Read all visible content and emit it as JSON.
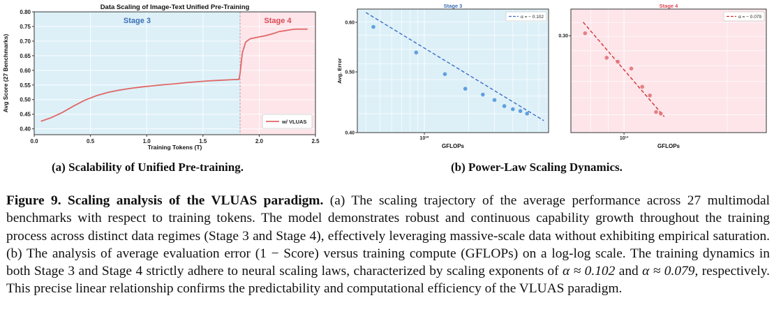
{
  "panel_a": {
    "subcaption": "(a) Scalability of Unified Pre-training."
  },
  "panel_b": {
    "subcaption": "(b) Power-Law Scaling Dynamics."
  },
  "caption": {
    "label": "Figure 9.",
    "title": "Scaling analysis of the VLUAS paradigm.",
    "body_1": " (a) The scaling trajectory of the average performance across 27 multimodal benchmarks with respect to training tokens. The model demonstrates robust and continuous capability growth throughout the training process across distinct data regimes (Stage 3 and Stage 4), effectively leveraging massive-scale data without exhibiting empirical saturation. (b) The analysis of average evaluation error (1 − Score) versus training compute (GFLOPs) on a log-log scale. The training dynamics in both Stage 3 and Stage 4 strictly adhere to neural scaling laws, characterized by scaling exponents of ",
    "alpha1": "α ≈ 0.102",
    "body_2": " and ",
    "alpha2": "α ≈ 0.079",
    "body_3": ", respectively. This precise linear relationship confirms the predictability and computational efficiency of the VLUAS paradigm."
  },
  "chart_data": [
    {
      "type": "line",
      "title": "Data Scaling of Image-Text Unified Pre-Training",
      "xlabel": "Training Tokens (T)",
      "ylabel": "Avg Score (27 Benchmarks)",
      "xlim": [
        0,
        2.5
      ],
      "ylim": [
        0.38,
        0.8
      ],
      "xticks": [
        0,
        0.5,
        1.0,
        1.5,
        2.0,
        2.5
      ],
      "xtick_labels": [
        "0.0",
        "0.5",
        "1.0",
        "1.5",
        "2.0",
        "2.5"
      ],
      "yticks": [
        0.4,
        0.45,
        0.5,
        0.55,
        0.6,
        0.65,
        0.7,
        0.75,
        0.8
      ],
      "ytick_labels": [
        "0.40",
        "0.45",
        "0.50",
        "0.55",
        "0.60",
        "0.65",
        "0.70",
        "0.75",
        "0.80"
      ],
      "grid": true,
      "legend": "bottom-right",
      "regions": [
        {
          "label": "Stage 3",
          "x_start": 0,
          "x_end": 1.83,
          "color": "#ddf0f8",
          "label_color": "#3b6fb6"
        },
        {
          "label": "Stage 4",
          "x_start": 1.83,
          "x_end": 2.5,
          "color": "#fde5ea",
          "label_color": "#d94b55"
        }
      ],
      "series": [
        {
          "name": "w/ VLUAS",
          "color": "#e06666",
          "x": [
            0.06,
            0.15,
            0.25,
            0.35,
            0.45,
            0.55,
            0.65,
            0.75,
            0.85,
            0.95,
            1.05,
            1.15,
            1.25,
            1.35,
            1.45,
            1.55,
            1.65,
            1.75,
            1.82,
            1.83,
            1.85,
            1.88,
            1.92,
            1.98,
            2.05,
            2.12,
            2.18,
            2.22,
            2.25,
            2.3,
            2.33,
            2.38,
            2.43
          ],
          "y": [
            0.426,
            0.438,
            0.456,
            0.478,
            0.498,
            0.513,
            0.524,
            0.532,
            0.538,
            0.543,
            0.547,
            0.551,
            0.554,
            0.558,
            0.561,
            0.564,
            0.566,
            0.568,
            0.569,
            0.59,
            0.66,
            0.697,
            0.708,
            0.713,
            0.718,
            0.725,
            0.733,
            0.735,
            0.737,
            0.74,
            0.741,
            0.741,
            0.741
          ]
        }
      ]
    },
    {
      "type": "scatter",
      "title": "Stage 3",
      "xlabel": "GFLOPs",
      "ylabel": "Avg. Error",
      "log_x": true,
      "log_y": true,
      "xlim": [
        3500000000.0,
        70000000000.0
      ],
      "ylim": [
        0.4,
        0.63
      ],
      "xticks": [
        10000000000.0
      ],
      "xtick_labels": [
        "10¹⁰"
      ],
      "yticks": [
        0.4,
        0.5,
        0.6
      ],
      "ytick_labels": [
        "0.40",
        "0.50",
        "0.60"
      ],
      "grid": true,
      "legend": "top-right",
      "legend_label": "α = − 0.102",
      "title_color": "#3b6fb6",
      "background": "#ddf0f8",
      "point_color": "#4a90d9",
      "line_color": "#3a6fc4",
      "points_x": [
        4500000000.0,
        8800000000.0,
        13800000000.0,
        19000000000.0,
        25000000000.0,
        30000000000.0,
        35000000000.0,
        40000000000.0,
        45000000000.0,
        50000000000.0
      ],
      "points_y": [
        0.59,
        0.537,
        0.496,
        0.47,
        0.46,
        0.451,
        0.441,
        0.436,
        0.433,
        0.429
      ],
      "fit_x": [
        4000000000.0,
        65000000000.0
      ],
      "fit_y": [
        0.622,
        0.418
      ]
    },
    {
      "type": "scatter",
      "title": "Stage 4",
      "xlabel": "GFLOPs",
      "ylabel": "",
      "log_x": true,
      "log_y": true,
      "xlim": [
        7000000000000.0,
        26000000000000.0
      ],
      "ylim": [
        0.232,
        0.322
      ],
      "xticks": [
        10000000000000.0
      ],
      "xtick_labels": [
        "10¹³"
      ],
      "yticks": [
        0.3
      ],
      "ytick_labels": [
        "0.30"
      ],
      "grid": true,
      "legend": "top-right",
      "legend_label": "α = − 0.079",
      "title_color": "#d94b55",
      "background": "#fde5ea",
      "point_color": "#e06f74",
      "line_color": "#cc3333",
      "points_x": [
        7700000000000.0,
        8900000000000.0,
        9600000000000.0,
        10500000000000.0,
        11300000000000.0,
        11900000000000.0,
        12400000000000.0,
        12800000000000.0
      ],
      "points_y": [
        0.302,
        0.283,
        0.28,
        0.275,
        0.262,
        0.256,
        0.245,
        0.244
      ],
      "fit_x": [
        7600000000000.0,
        13100000000000.0
      ],
      "fit_y": [
        0.311,
        0.242
      ]
    }
  ]
}
